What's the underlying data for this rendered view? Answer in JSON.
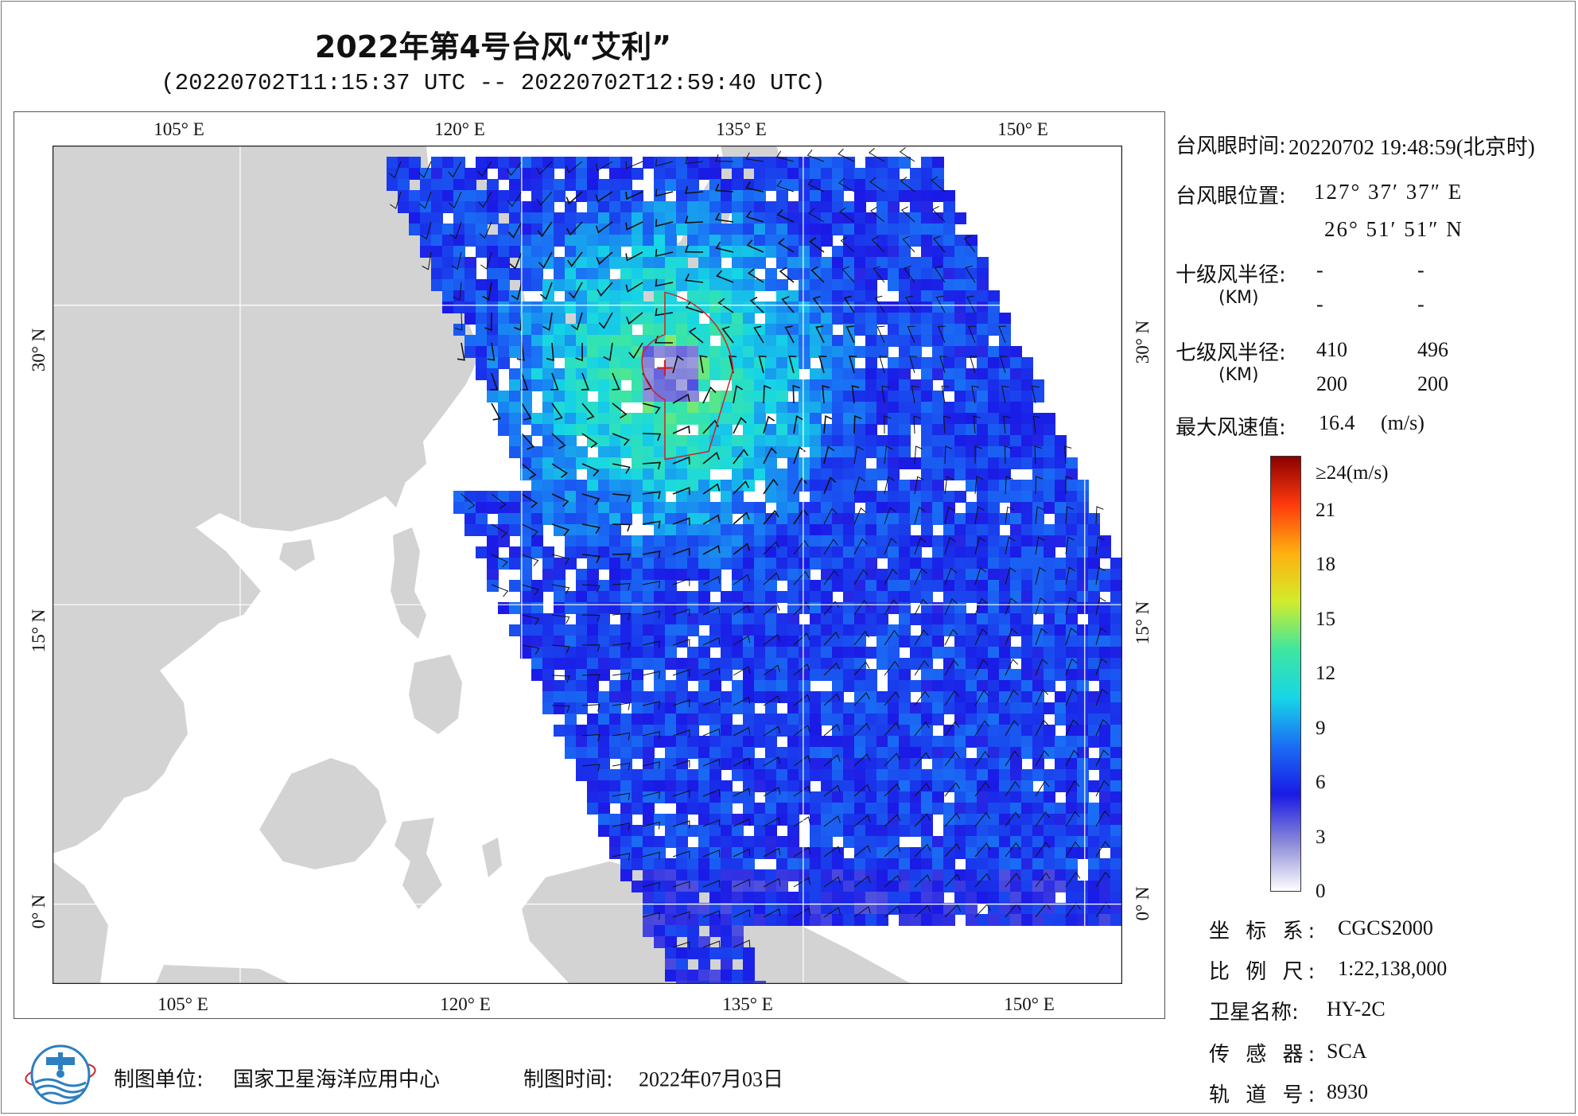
{
  "title": "2022年第4号台风“艾利”",
  "subtitle": "(20220702T11:15:37 UTC -- 20220702T12:59:40 UTC)",
  "map": {
    "lon_range": [
      95,
      152
    ],
    "lat_range": [
      -4,
      38
    ],
    "lon_ticks": [
      105,
      120,
      135,
      150
    ],
    "lat_ticks": [
      0,
      15,
      30
    ],
    "lon_tick_labels": [
      "105° E",
      "120° E",
      "135° E",
      "150° E"
    ],
    "lat_tick_labels": [
      "0° N",
      "15° N",
      "30° N"
    ],
    "typhoon_center": {
      "lon": 127.63,
      "lat": 26.86
    },
    "colors": {
      "land": "#d3d3d3",
      "sea": "#ffffff",
      "radius_line": "#d42020",
      "center_mark": "#d42020"
    }
  },
  "info": {
    "eye_time_label": "台风眼时间:",
    "eye_time_value": "20220702 19:48:59(北京时)",
    "eye_pos_label": "台风眼位置:",
    "eye_lon": "127° 37′ 37″ E",
    "eye_lat": "26° 51′ 51″ N",
    "r10_label": "十级风半径:",
    "r10_unit": "(KM)",
    "r10_values": [
      "-",
      "-",
      "-",
      "-"
    ],
    "r7_label": "七级风半径:",
    "r7_unit": "(KM)",
    "r7_values": [
      "410",
      "496",
      "200",
      "200"
    ],
    "max_wind_label": "最大风速值:",
    "max_wind_value": "16.4",
    "max_wind_unit": "(m/s)"
  },
  "colorbar": {
    "labels": [
      "≥24(m/s)",
      "21",
      "18",
      "15",
      "12",
      "9",
      "6",
      "3",
      "0"
    ],
    "values": [
      24,
      21,
      18,
      15,
      12,
      9,
      6,
      3,
      0
    ],
    "stops": [
      "#ffffff",
      "#8a8ad8",
      "#1a1ae6",
      "#1a6ef5",
      "#16d6e6",
      "#3ee6a0",
      "#d2ec2a",
      "#ffb010",
      "#ff3a0e",
      "#8c0000"
    ]
  },
  "meta": {
    "crs_label": "坐 标 系:",
    "crs_value": "CGCS2000",
    "scale_label": "比 例 尺:",
    "scale_value": "1:22,138,000",
    "satellite_label": "卫星名称:",
    "satellite_value": "HY-2C",
    "sensor_label": "传 感 器:",
    "sensor_value": "SCA",
    "orbit_label": "轨 道 号:",
    "orbit_value": "8930"
  },
  "footer": {
    "unit_label": "制图单位:",
    "unit_value": "国家卫星海洋应用中心",
    "date_label": "制图时间:",
    "date_value": "2022年07月03日"
  }
}
